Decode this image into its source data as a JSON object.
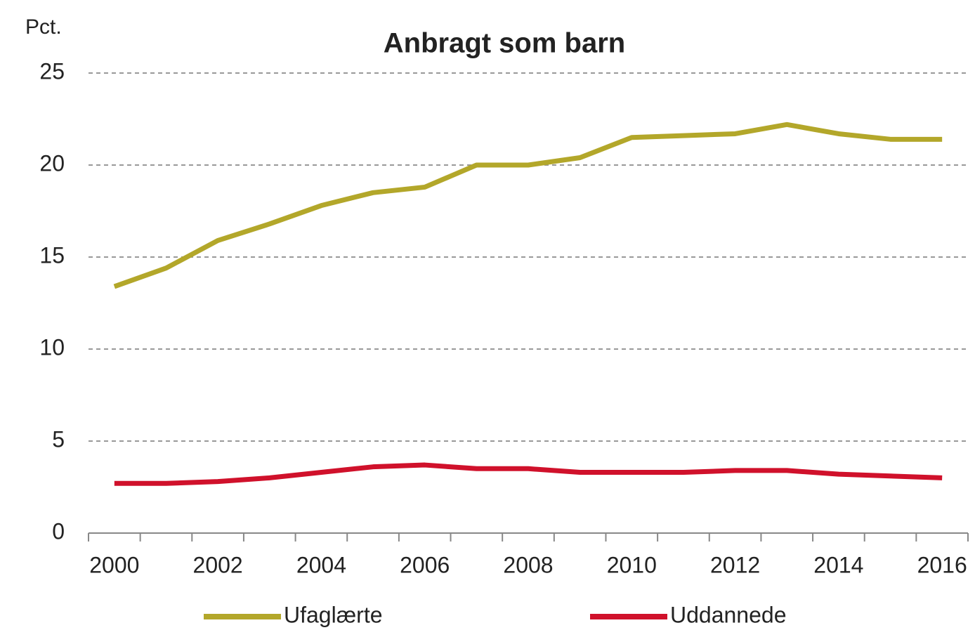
{
  "chart_data": {
    "type": "line",
    "title": "Anbragt som barn",
    "y_label": "Pct.",
    "categories": [
      "2000",
      null,
      "2002",
      null,
      "2004",
      null,
      "2006",
      null,
      "2008",
      null,
      "2010",
      null,
      "2012",
      null,
      "2014",
      null,
      "2016"
    ],
    "series": [
      {
        "name": "Ufaglærte",
        "color": "#b3a72a",
        "values": [
          13.4,
          14.4,
          15.9,
          16.8,
          17.8,
          18.5,
          18.8,
          20.0,
          20.0,
          20.4,
          21.5,
          21.6,
          21.7,
          22.2,
          21.7,
          21.4,
          21.4
        ]
      },
      {
        "name": "Uddannede",
        "color": "#d0112b",
        "values": [
          2.7,
          2.7,
          2.8,
          3.0,
          3.3,
          3.6,
          3.7,
          3.5,
          3.5,
          3.3,
          3.3,
          3.3,
          3.4,
          3.4,
          3.2,
          3.1,
          3.0
        ]
      }
    ],
    "ylim": [
      0,
      25
    ],
    "yticks": [
      0,
      5,
      10,
      15,
      20,
      25
    ],
    "grid": true,
    "legend": "bottom"
  }
}
